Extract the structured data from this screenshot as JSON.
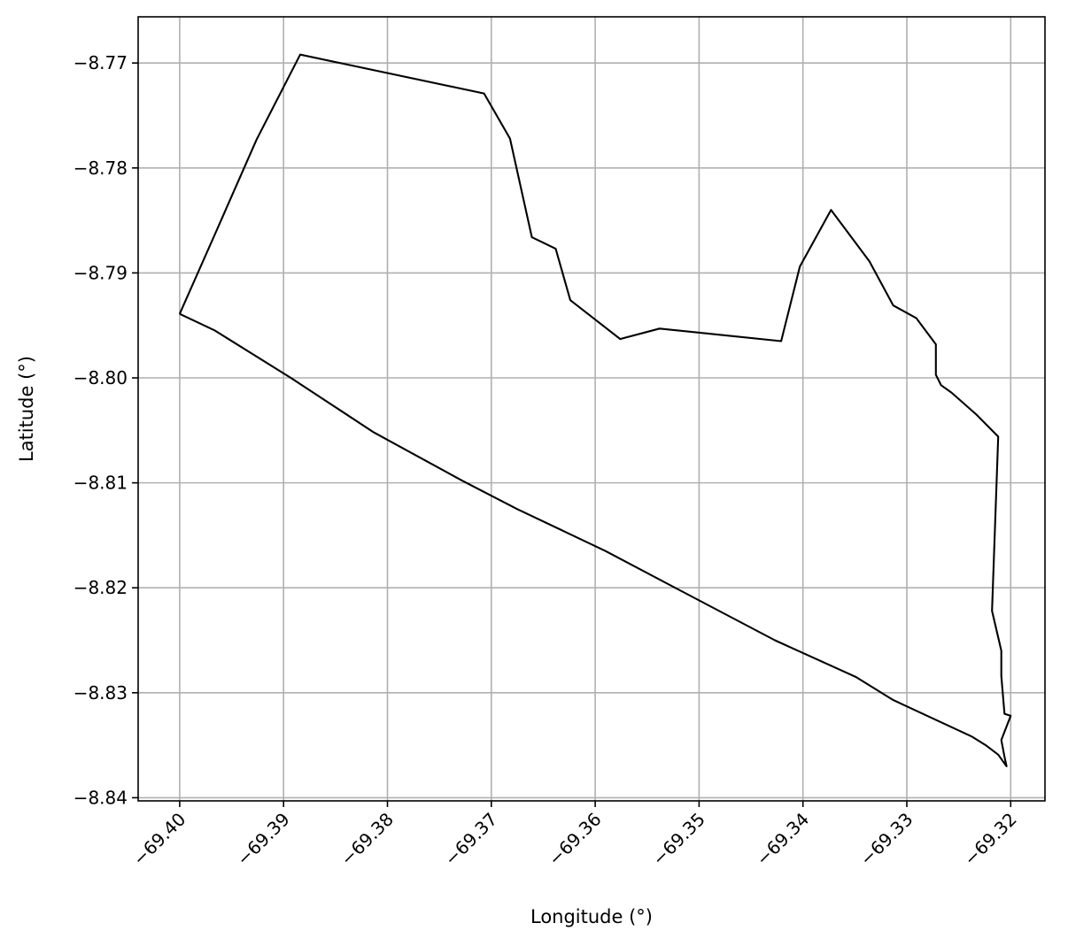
{
  "chart_data": {
    "type": "line",
    "title": "",
    "xlabel": "Longitude (°)",
    "ylabel": "Latitude (°)",
    "xlim": [
      -69.404,
      -69.3167
    ],
    "ylim": [
      -8.8403,
      -8.7656
    ],
    "grid": true,
    "x_ticks": [
      -69.4,
      -69.39,
      -69.38,
      -69.37,
      -69.36,
      -69.35,
      -69.34,
      -69.33,
      -69.32
    ],
    "x_tick_labels": [
      "−69.40",
      "−69.39",
      "−69.38",
      "−69.37",
      "−69.36",
      "−69.35",
      "−69.34",
      "−69.33",
      "−69.32"
    ],
    "y_ticks": [
      -8.77,
      -8.78,
      -8.79,
      -8.8,
      -8.81,
      -8.82,
      -8.83,
      -8.84
    ],
    "y_tick_labels": [
      "−8.77",
      "−8.78",
      "−8.79",
      "−8.80",
      "−8.81",
      "−8.82",
      "−8.83",
      "−8.84"
    ],
    "series": [
      {
        "color": "#000000",
        "x": [
          -69.4,
          -69.3966,
          -69.3926,
          -69.3884,
          -69.3707,
          -69.3682,
          -69.3661,
          -69.3638,
          -69.3624,
          -69.3576,
          -69.3538,
          -69.3421,
          -69.3403,
          -69.3373,
          -69.3336,
          -69.3313,
          -69.3291,
          -69.3272,
          -69.3272,
          -69.3267,
          -69.3257,
          -69.3233,
          -69.3212,
          -69.3218,
          -69.3209,
          -69.3209,
          -69.3206,
          -69.32,
          -69.3209,
          -69.3206,
          -69.3204,
          -69.3212,
          -69.3224,
          -69.3237,
          -69.3313,
          -69.3349,
          -69.3427,
          -69.3525,
          -69.359,
          -69.3675,
          -69.3728,
          -69.3813,
          -69.3893,
          -69.3966,
          -69.4
        ],
        "y": [
          -8.7939,
          -8.7863,
          -8.7773,
          -8.7692,
          -8.7729,
          -8.7772,
          -8.7866,
          -8.7877,
          -8.7926,
          -8.7963,
          -8.7953,
          -8.7965,
          -8.7894,
          -8.784,
          -8.7889,
          -8.7931,
          -8.7943,
          -8.7968,
          -8.7997,
          -8.8007,
          -8.8014,
          -8.8035,
          -8.8056,
          -8.8222,
          -8.826,
          -8.8284,
          -8.832,
          -8.8322,
          -8.8345,
          -8.8361,
          -8.837,
          -8.8359,
          -8.835,
          -8.8342,
          -8.8307,
          -8.8285,
          -8.825,
          -8.8199,
          -8.8165,
          -8.8125,
          -8.8098,
          -8.8052,
          -8.8,
          -8.7955,
          -8.7939
        ]
      }
    ]
  }
}
